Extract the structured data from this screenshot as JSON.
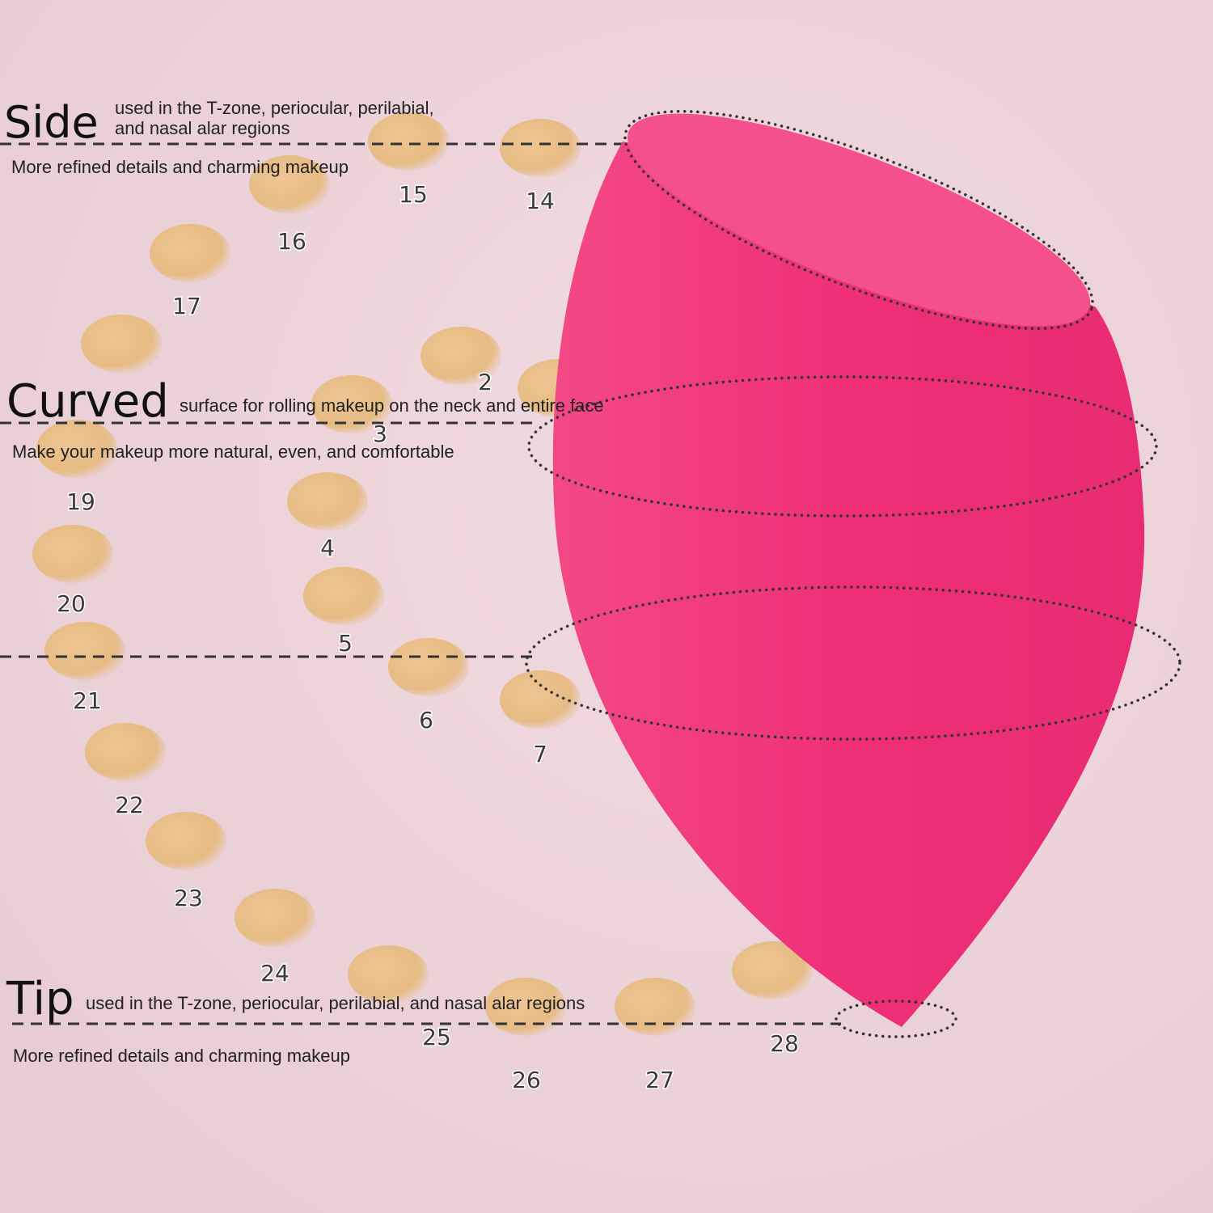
{
  "colors": {
    "background": "#ecd3da",
    "sponge": "#f0307a",
    "sponge_top": "#f54e8c",
    "swatch": "#e9bf87"
  },
  "side": {
    "title": "Side",
    "desc_line1": "used in the T-zone, periocular, perilabial,",
    "desc_line2": "and nasal alar regions",
    "subtitle": "More refined details and charming makeup"
  },
  "curved": {
    "title": "Curved",
    "desc": "surface for rolling makeup on the neck and entire face",
    "subtitle": "Make your makeup more natural, even, and comfortable"
  },
  "tip": {
    "title": "Tip",
    "desc": "used in the T-zone, periocular, perilabial, and nasal alar regions",
    "subtitle": "More refined details and charming makeup"
  },
  "swatch_labels": [
    "15",
    "14",
    "16",
    "17",
    "2",
    "3",
    "19",
    "4",
    "20",
    "5",
    "21",
    "6",
    "7",
    "22",
    "23",
    "24",
    "25",
    "26",
    "27",
    "28"
  ]
}
